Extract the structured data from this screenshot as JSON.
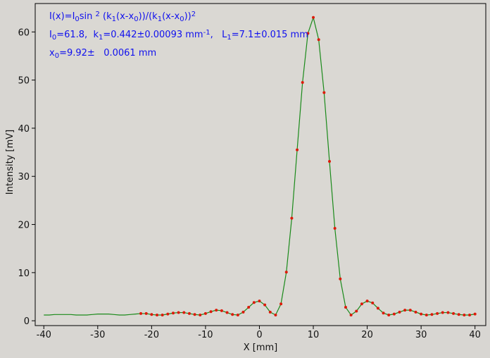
{
  "chart_data": {
    "type": "line",
    "xlabel": "X [mm]",
    "ylabel": "Intensity [mV]",
    "annotations": [
      [
        {
          "text": "I(x)=I"
        },
        {
          "text": "0",
          "style": "sub"
        },
        {
          "text": "sin "
        },
        {
          "text": "2",
          "style": "sup"
        },
        {
          "text": " (k"
        },
        {
          "text": "1",
          "style": "sub"
        },
        {
          "text": "(x-x"
        },
        {
          "text": "0",
          "style": "sub"
        },
        {
          "text": "))/(k"
        },
        {
          "text": "1",
          "style": "sub"
        },
        {
          "text": "(x-x"
        },
        {
          "text": "0",
          "style": "sub"
        },
        {
          "text": "))"
        },
        {
          "text": "2",
          "style": "sup"
        }
      ],
      [
        {
          "text": "I"
        },
        {
          "text": "0",
          "style": "sub"
        },
        {
          "text": "=61.8,  k"
        },
        {
          "text": "1",
          "style": "sub"
        },
        {
          "text": "=0.442±0.00093 mm"
        },
        {
          "text": "-1",
          "style": "sup"
        },
        {
          "text": ",   L"
        },
        {
          "text": "1",
          "style": "sub"
        },
        {
          "text": "=7.1±0.015 mm"
        }
      ],
      [
        {
          "text": "x"
        },
        {
          "text": "0",
          "style": "sub"
        },
        {
          "text": "=9.92±   0.0061 mm"
        }
      ]
    ],
    "annotation_color": "#1010ee",
    "x": [
      -40,
      -39,
      -38,
      -37,
      -36,
      -35,
      -34,
      -33,
      -32,
      -31,
      -30,
      -29,
      -28,
      -27,
      -26,
      -25,
      -24,
      -23,
      -22,
      -21,
      -20,
      -19,
      -18,
      -17,
      -16,
      -15,
      -14,
      -13,
      -12,
      -11,
      -10,
      -9,
      -8,
      -7,
      -6,
      -5,
      -4,
      -3,
      -2,
      -1,
      0,
      1,
      2,
      3,
      4,
      5,
      6,
      7,
      8,
      9,
      10,
      11,
      12,
      13,
      14,
      15,
      16,
      17,
      18,
      19,
      20,
      21,
      22,
      23,
      24,
      25,
      26,
      27,
      28,
      29,
      30,
      31,
      32,
      33,
      34,
      35,
      36,
      37,
      38,
      39,
      40
    ],
    "series": [
      {
        "color": "#1a8a1a",
        "mode": "line",
        "values": [
          1.2,
          1.2,
          1.3,
          1.3,
          1.3,
          1.3,
          1.2,
          1.2,
          1.2,
          1.3,
          1.4,
          1.4,
          1.4,
          1.3,
          1.2,
          1.2,
          1.3,
          1.4,
          1.5,
          1.5,
          1.3,
          1.2,
          1.2,
          1.4,
          1.6,
          1.7,
          1.7,
          1.5,
          1.3,
          1.2,
          1.5,
          1.9,
          2.2,
          2.1,
          1.7,
          1.3,
          1.2,
          1.8,
          2.8,
          3.8,
          4.1,
          3.3,
          1.8,
          1.2,
          3.5,
          10.1,
          21.3,
          35.5,
          49.5,
          59.7,
          63.0,
          58.4,
          47.4,
          33.1,
          19.2,
          8.7,
          2.8,
          1.2,
          2.0,
          3.5,
          4.1,
          3.7,
          2.6,
          1.6,
          1.2,
          1.4,
          1.8,
          2.2,
          2.2,
          1.8,
          1.4,
          1.2,
          1.3,
          1.5,
          1.7,
          1.7,
          1.5,
          1.3,
          1.2,
          1.2,
          1.4
        ]
      },
      {
        "color": "#dd1a0a",
        "mode": "markers",
        "values": [
          null,
          null,
          null,
          null,
          null,
          null,
          null,
          null,
          null,
          null,
          null,
          null,
          null,
          null,
          null,
          null,
          null,
          null,
          1.5,
          1.5,
          1.3,
          1.2,
          1.2,
          1.4,
          1.6,
          1.7,
          1.7,
          1.5,
          1.3,
          1.2,
          1.5,
          1.9,
          2.2,
          2.1,
          1.7,
          1.3,
          1.2,
          1.8,
          2.8,
          3.8,
          4.1,
          3.3,
          1.8,
          1.2,
          3.5,
          10.1,
          21.3,
          35.5,
          49.5,
          59.7,
          63.0,
          58.4,
          47.4,
          33.1,
          19.2,
          8.7,
          2.8,
          1.2,
          2.0,
          3.5,
          4.1,
          3.7,
          2.6,
          1.6,
          1.2,
          1.4,
          1.8,
          2.2,
          2.2,
          1.8,
          1.4,
          1.2,
          1.3,
          1.5,
          1.7,
          1.7,
          1.5,
          1.3,
          1.2,
          1.2,
          1.4
        ]
      }
    ],
    "xlim": [
      -41.6,
      42
    ],
    "ylim": [
      -1,
      65.9
    ],
    "xticks": [
      -40,
      -30,
      -20,
      -10,
      0,
      10,
      20,
      30,
      40
    ],
    "yticks": [
      0,
      10,
      20,
      30,
      40,
      50,
      60
    ]
  }
}
